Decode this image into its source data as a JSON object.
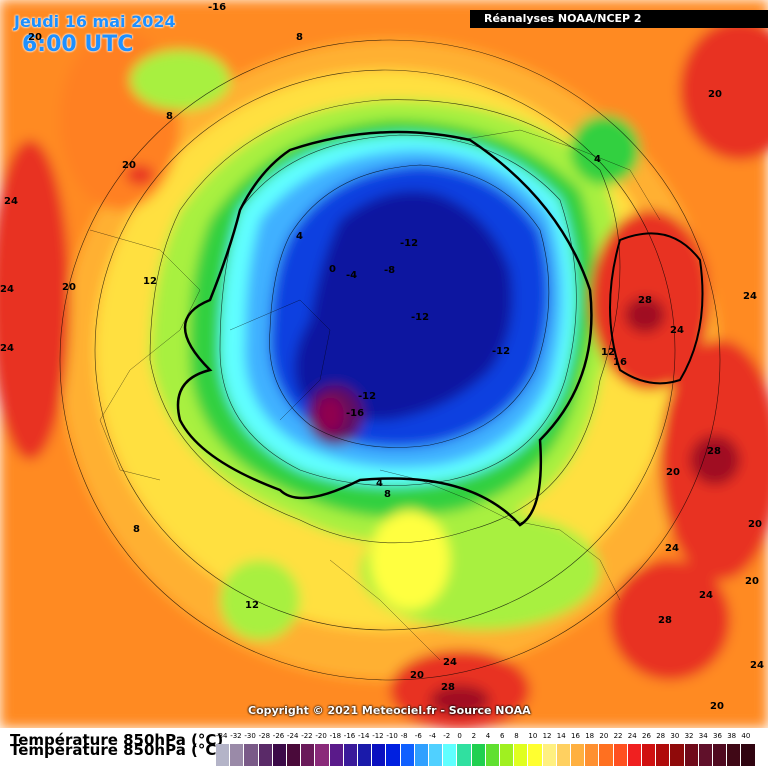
{
  "header": {
    "date": "Jeudi 16 mai 2024",
    "time": "6:00 UTC",
    "source": "Réanalyses NOAA/NCEP 2"
  },
  "copyright": "Copyright © 2021 Meteociel.fr - Source NOAA",
  "footer": {
    "variable_line1": "Température 850hPa (°C)",
    "variable_line2": "Température 850hPa (°C)"
  },
  "contour_labels": [
    {
      "text": "-16"
    },
    {
      "text": "8"
    },
    {
      "text": "8"
    },
    {
      "text": "20"
    },
    {
      "text": "24"
    },
    {
      "text": "24"
    },
    {
      "text": "24"
    },
    {
      "text": "20"
    },
    {
      "text": "12"
    },
    {
      "text": "4"
    },
    {
      "text": "0"
    },
    {
      "text": "-4"
    },
    {
      "text": "-8"
    },
    {
      "text": "-12"
    },
    {
      "text": "-12"
    },
    {
      "text": "-12"
    },
    {
      "text": "-12"
    },
    {
      "text": "-16"
    },
    {
      "text": "4"
    },
    {
      "text": "8"
    },
    {
      "text": "8"
    },
    {
      "text": "12"
    },
    {
      "text": "24"
    },
    {
      "text": "20"
    },
    {
      "text": "28"
    },
    {
      "text": "24"
    },
    {
      "text": "20"
    },
    {
      "text": "4"
    },
    {
      "text": "28"
    },
    {
      "text": "24"
    },
    {
      "text": "24"
    },
    {
      "text": "12"
    },
    {
      "text": "16"
    },
    {
      "text": "20"
    },
    {
      "text": "28"
    },
    {
      "text": "24"
    },
    {
      "text": "24"
    },
    {
      "text": "20"
    },
    {
      "text": "28"
    },
    {
      "text": "20"
    },
    {
      "text": "20"
    },
    {
      "text": "20"
    }
  ],
  "legend": {
    "ticks": [
      "-34",
      "-32",
      "-30",
      "-28",
      "-26",
      "-24",
      "-22",
      "-20",
      "-18",
      "-16",
      "-14",
      "-12",
      "-10",
      "-8",
      "-6",
      "-4",
      "-2",
      "0",
      "2",
      "4",
      "6",
      "8",
      "10",
      "12",
      "14",
      "16",
      "18",
      "20",
      "22",
      "24",
      "26",
      "28",
      "30",
      "32",
      "34",
      "36",
      "38",
      "40"
    ],
    "colors": [
      "#b4b4c8",
      "#9a8aa8",
      "#7a5a88",
      "#5a2a68",
      "#3c0a48",
      "#4a0a3a",
      "#6a1a5a",
      "#8a2a7a",
      "#5a1a8a",
      "#3a1a9a",
      "#1a1aaa",
      "#0a10c0",
      "#0020e0",
      "#1060ff",
      "#30a0ff",
      "#50d0ff",
      "#60ffff",
      "#30e0a0",
      "#20d050",
      "#60e030",
      "#a0f020",
      "#e0ff20",
      "#ffff30",
      "#fff080",
      "#ffd060",
      "#ffb040",
      "#ff9030",
      "#ff7020",
      "#ff5020",
      "#f02020",
      "#d01010",
      "#b00a0a",
      "#900a0a",
      "#700a1a",
      "#60102a",
      "#500a20",
      "#400816",
      "#300410"
    ]
  },
  "map": {
    "colors": {
      "hot": "#e83020",
      "warm": "#ff8a20",
      "mild": "#ffc030",
      "yellow": "#ffff40",
      "lightgreen": "#a8f040",
      "green": "#30d040",
      "cyan": "#60ffff",
      "lightblue": "#40b0ff",
      "blue": "#1040e0",
      "darkblue": "#0818a0",
      "purple": "#601060",
      "magenta": "#900050"
    }
  }
}
